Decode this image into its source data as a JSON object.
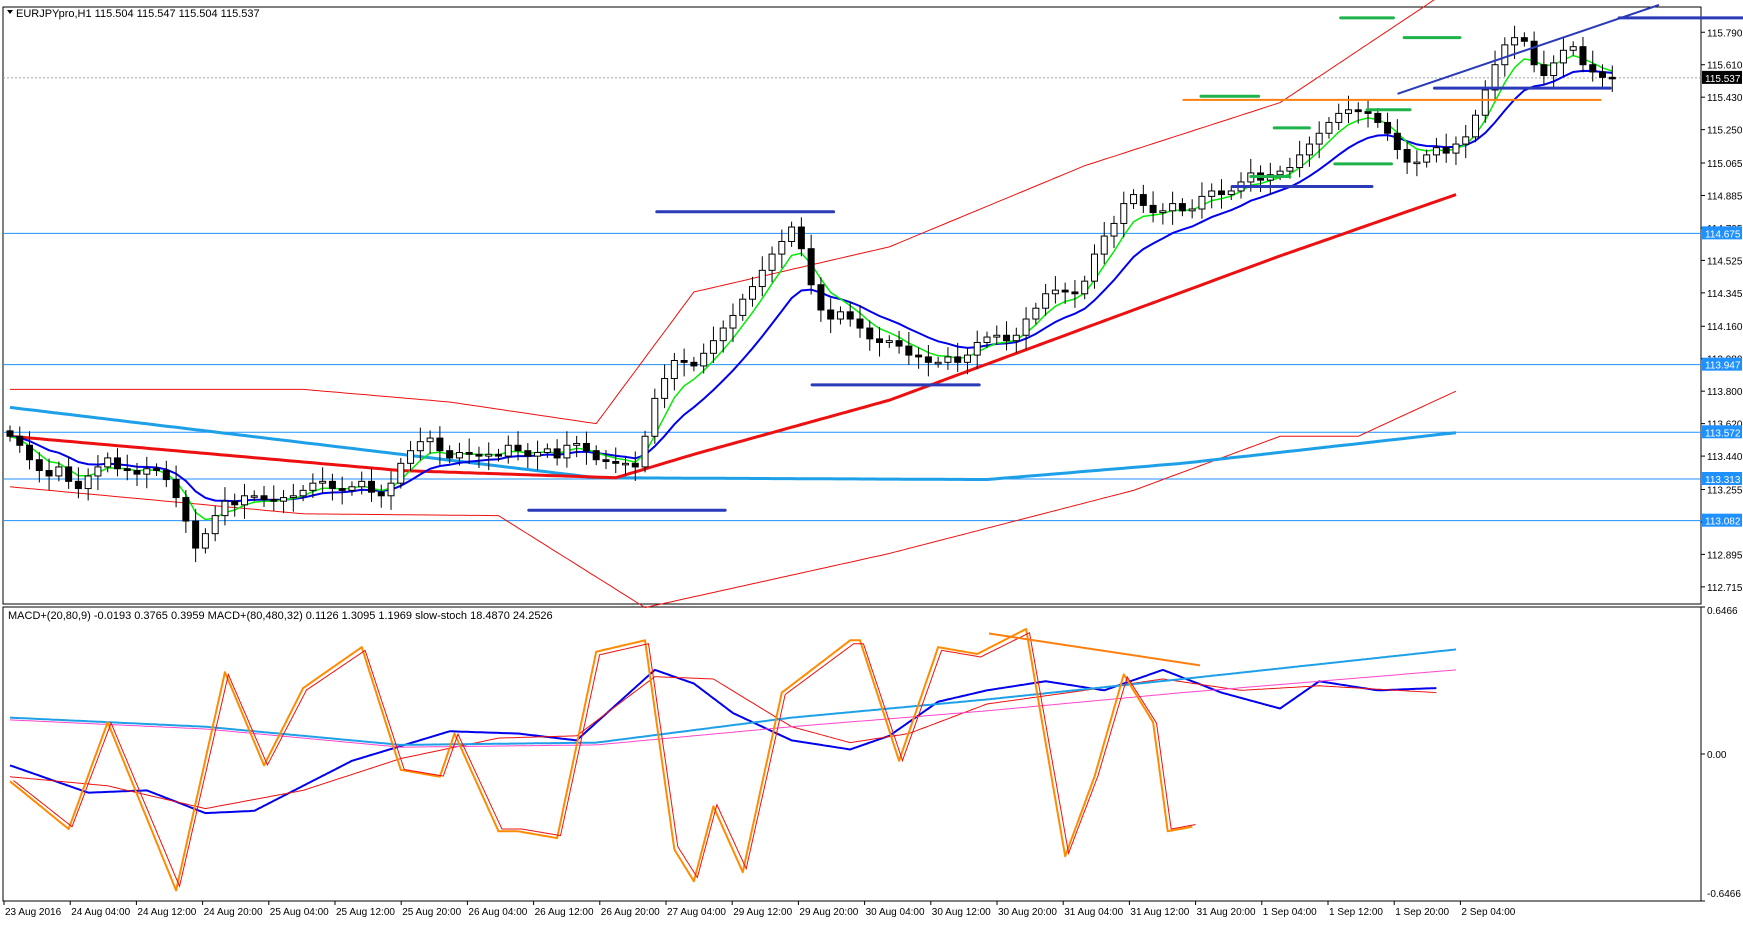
{
  "main_header": "EURJPYpro,H1  115.504 115.547 115.504 115.537",
  "macd_header": "MACD+(20,80,9) -0.0193 0.3765 0.3959  MACD+(80,480,32) 0.1126 1.3095 1.1969  slow-stoch 18.4870 24.2526",
  "colors": {
    "candle_bull": "#ffffff",
    "candle_bear": "#000000",
    "ma_fast": "#00ee00",
    "ma_mid": "#0000ee",
    "ma_slow_red": "#ee1010",
    "ma_long_cyan": "#1ea0e8",
    "band": "#ee1010",
    "hline": "#1e90ff",
    "manual_blue": "#2a3ab8",
    "manual_green": "#1db34a",
    "manual_orange": "#ff7f0e",
    "stoch_main": "#ff8c00",
    "stoch_signal": "#ee1010",
    "macd1": "#0000ee",
    "macd1_signal": "#ee1010",
    "macd2": "#1ea0e8",
    "macd2_signal": "#ff44cc"
  },
  "chart_data": [
    {
      "type": "candlestick",
      "title": "EURJPYpro,H1",
      "ylim": [
        112.62,
        115.93
      ],
      "y_ticks": [
        115.79,
        115.61,
        115.43,
        115.25,
        115.065,
        114.885,
        114.705,
        114.525,
        114.345,
        114.16,
        113.98,
        113.8,
        113.62,
        113.44,
        113.255,
        113.075,
        112.895,
        112.715
      ],
      "x_tick_labels": [
        "23 Aug 2016",
        "24 Aug 04:00",
        "24 Aug 12:00",
        "24 Aug 20:00",
        "25 Aug 04:00",
        "25 Aug 12:00",
        "25 Aug 20:00",
        "26 Aug 04:00",
        "26 Aug 12:00",
        "26 Aug 20:00",
        "27 Aug 04:00",
        "29 Aug 12:00",
        "29 Aug 20:00",
        "30 Aug 04:00",
        "30 Aug 12:00",
        "30 Aug 20:00",
        "31 Aug 04:00",
        "31 Aug 12:00",
        "31 Aug 20:00",
        "1 Sep 04:00",
        "1 Sep 12:00",
        "1 Sep 20:00",
        "2 Sep 04:00"
      ],
      "closes": [
        113.55,
        113.5,
        113.42,
        113.36,
        113.33,
        113.38,
        113.3,
        113.26,
        113.33,
        113.38,
        113.43,
        113.37,
        113.36,
        113.34,
        113.37,
        113.36,
        113.31,
        113.21,
        113.08,
        112.93,
        113.01,
        113.11,
        113.19,
        113.17,
        113.22,
        113.22,
        113.2,
        113.19,
        113.21,
        113.22,
        113.25,
        113.29,
        113.3,
        113.26,
        113.25,
        113.27,
        113.3,
        113.24,
        113.22,
        113.29,
        113.4,
        113.47,
        113.52,
        113.54,
        113.47,
        113.43,
        113.46,
        113.45,
        113.44,
        113.45,
        113.44,
        113.5,
        113.47,
        113.44,
        113.46,
        113.48,
        113.43,
        113.5,
        113.51,
        113.47,
        113.42,
        113.41,
        113.4,
        113.4,
        113.38,
        113.55,
        113.76,
        113.87,
        113.97,
        113.96,
        113.94,
        114.01,
        114.08,
        114.15,
        114.22,
        114.31,
        114.38,
        114.47,
        114.56,
        114.63,
        114.71,
        114.59,
        114.39,
        114.25,
        114.2,
        114.24,
        114.2,
        114.15,
        114.09,
        114.07,
        114.08,
        114.05,
        114,
        113.99,
        113.96,
        113.96,
        113.99,
        113.96,
        114.0,
        114.07,
        114.1,
        114.11,
        114.08,
        114.11,
        114.2,
        114.26,
        114.34,
        114.36,
        114.35,
        114.34,
        114.41,
        114.56,
        114.66,
        114.73,
        114.84,
        114.89,
        114.83,
        114.79,
        114.8,
        114.84,
        114.8,
        114.81,
        114.88,
        114.91,
        114.89,
        114.91,
        114.96,
        115.01,
        114.97,
        115.0,
        115.02,
        115.04,
        115.11,
        115.17,
        115.23,
        115.29,
        115.34,
        115.36,
        115.35,
        115.34,
        115.29,
        115.23,
        115.14,
        115.07,
        115.07,
        115.11,
        115.15,
        115.12,
        115.17,
        115.21,
        115.33,
        115.47,
        115.61,
        115.72,
        115.76,
        115.74,
        115.61,
        115.55,
        115.62,
        115.69,
        115.71,
        115.61,
        115.57,
        115.54,
        115.537
      ],
      "manual_levels": [
        {
          "name": "hline-114.675",
          "y": 114.675,
          "label": "114.675"
        },
        {
          "name": "hline-113.947",
          "y": 113.947,
          "label": "113.947"
        },
        {
          "name": "hline-113.572",
          "y": 113.572,
          "label": "113.572"
        },
        {
          "name": "hline-113.313",
          "y": 113.313,
          "label": "113.313"
        },
        {
          "name": "hline-113.082",
          "y": 113.082,
          "label": "113.082"
        }
      ],
      "current_price": {
        "y": 115.537,
        "label": "115.537"
      },
      "manual_segments": [
        {
          "name": "trend-line",
          "color": "manual_blue",
          "x1": 142.1,
          "y1": 115.45,
          "x2": 168.7,
          "y2": 115.94,
          "w": 2
        },
        {
          "name": "blue-top",
          "color": "manual_blue",
          "x1": 164.7,
          "y1": 115.87,
          "x2": 178.3,
          "y2": 115.87,
          "w": 3
        },
        {
          "name": "blue-1",
          "color": "manual_blue",
          "x1": 145.8,
          "y1": 115.48,
          "x2": 163.8,
          "y2": 115.48,
          "w": 3
        },
        {
          "name": "blue-2",
          "color": "manual_blue",
          "x1": 66.2,
          "y1": 114.795,
          "x2": 84.3,
          "y2": 114.795,
          "w": 3
        },
        {
          "name": "blue-3",
          "color": "manual_blue",
          "x1": 82.1,
          "y1": 113.835,
          "x2": 99.2,
          "y2": 113.835,
          "w": 3
        },
        {
          "name": "blue-4",
          "color": "manual_blue",
          "x1": 53.1,
          "y1": 113.14,
          "x2": 73.2,
          "y2": 113.14,
          "w": 3
        },
        {
          "name": "blue-5",
          "color": "manual_blue",
          "x1": 125.1,
          "y1": 114.935,
          "x2": 139.4,
          "y2": 114.935,
          "w": 3
        },
        {
          "name": "orange-level",
          "color": "manual_orange",
          "x1": 120.1,
          "y1": 115.415,
          "x2": 162.8,
          "y2": 115.415,
          "w": 2
        },
        {
          "name": "green-1",
          "color": "manual_green",
          "x1": 121.9,
          "y1": 115.435,
          "x2": 127.8,
          "y2": 115.435,
          "w": 3
        },
        {
          "name": "green-2",
          "color": "manual_green",
          "x1": 129.4,
          "y1": 115.26,
          "x2": 133.0,
          "y2": 115.26,
          "w": 3
        },
        {
          "name": "green-3",
          "color": "manual_green",
          "x1": 127.0,
          "y1": 114.99,
          "x2": 131.0,
          "y2": 114.99,
          "w": 3
        },
        {
          "name": "green-4",
          "color": "manual_green",
          "x1": 135.6,
          "y1": 115.06,
          "x2": 141.4,
          "y2": 115.06,
          "w": 3
        },
        {
          "name": "green-5",
          "color": "manual_green",
          "x1": 136.2,
          "y1": 115.87,
          "x2": 141.6,
          "y2": 115.87,
          "w": 3
        },
        {
          "name": "green-6",
          "color": "manual_green",
          "x1": 138.9,
          "y1": 115.36,
          "x2": 143.3,
          "y2": 115.36,
          "w": 3
        },
        {
          "name": "green-7",
          "color": "manual_green",
          "x1": 142.7,
          "y1": 115.76,
          "x2": 148.4,
          "y2": 115.76,
          "w": 3
        }
      ],
      "indicators": {
        "ma_long_cyan": [
          [
            0,
            113.71
          ],
          [
            40,
            113.45
          ],
          [
            60,
            113.32
          ],
          [
            100,
            113.31
          ],
          [
            120,
            113.4
          ],
          [
            148,
            113.57
          ]
        ],
        "band_upper": [
          [
            0,
            113.81
          ],
          [
            30,
            113.81
          ],
          [
            45,
            113.74
          ],
          [
            60,
            113.62
          ],
          [
            70,
            114.35
          ],
          [
            90,
            114.6
          ],
          [
            110,
            115.05
          ],
          [
            130,
            115.4
          ],
          [
            148,
            116.05
          ]
        ],
        "band_lower": [
          [
            0,
            113.27
          ],
          [
            30,
            113.12
          ],
          [
            50,
            113.11
          ],
          [
            65,
            112.6
          ],
          [
            90,
            112.9
          ],
          [
            115,
            113.25
          ],
          [
            130,
            113.55
          ],
          [
            138,
            113.55
          ],
          [
            148,
            113.8
          ]
        ],
        "ma_slow_red": [
          [
            0,
            113.55
          ],
          [
            40,
            113.36
          ],
          [
            62,
            113.32
          ],
          [
            70,
            113.45
          ],
          [
            90,
            113.75
          ],
          [
            110,
            114.15
          ],
          [
            130,
            114.55
          ],
          [
            148,
            114.89
          ]
        ]
      }
    },
    {
      "type": "line",
      "title": "MACD+(20,80,9) / MACD+(80,480,32) / slow-stoch",
      "ylim": [
        -0.6466,
        0.6466
      ],
      "y_tick_labels": [
        "0.6466",
        "0.00",
        "-0.6466"
      ],
      "series": [
        {
          "name": "MACD+(20,80,9)",
          "color": "macd1",
          "points": [
            [
              0,
              -0.05
            ],
            [
              8,
              -0.17
            ],
            [
              14,
              -0.16
            ],
            [
              20,
              -0.26
            ],
            [
              25,
              -0.25
            ],
            [
              35,
              -0.03
            ],
            [
              45,
              0.1
            ],
            [
              52,
              0.09
            ],
            [
              58,
              0.06
            ],
            [
              66,
              0.37
            ],
            [
              70,
              0.31
            ],
            [
              74,
              0.18
            ],
            [
              80,
              0.06
            ],
            [
              86,
              0.02
            ],
            [
              90,
              0.08
            ],
            [
              95,
              0.23
            ],
            [
              100,
              0.28
            ],
            [
              106,
              0.32
            ],
            [
              112,
              0.28
            ],
            [
              118,
              0.37
            ],
            [
              124,
              0.27
            ],
            [
              130,
              0.2
            ],
            [
              134,
              0.32
            ],
            [
              140,
              0.28
            ],
            [
              146,
              0.29
            ]
          ]
        },
        {
          "name": "signal",
          "color": "macd1_signal",
          "points": [
            [
              0,
              -0.1
            ],
            [
              10,
              -0.14
            ],
            [
              20,
              -0.24
            ],
            [
              30,
              -0.16
            ],
            [
              40,
              -0.02
            ],
            [
              50,
              0.07
            ],
            [
              58,
              0.08
            ],
            [
              66,
              0.34
            ],
            [
              72,
              0.33
            ],
            [
              80,
              0.12
            ],
            [
              86,
              0.05
            ],
            [
              92,
              0.09
            ],
            [
              100,
              0.22
            ],
            [
              110,
              0.28
            ],
            [
              118,
              0.33
            ],
            [
              126,
              0.28
            ],
            [
              134,
              0.3
            ],
            [
              146,
              0.27
            ]
          ]
        },
        {
          "name": "MACD+(80,480,32)",
          "color": "macd2",
          "points": [
            [
              0,
              0.16
            ],
            [
              20,
              0.12
            ],
            [
              40,
              0.04
            ],
            [
              60,
              0.05
            ],
            [
              80,
              0.16
            ],
            [
              100,
              0.24
            ],
            [
              120,
              0.33
            ],
            [
              148,
              0.46
            ]
          ]
        },
        {
          "name": "MACD+(80,480,32) signal",
          "color": "macd2_signal",
          "points": [
            [
              0,
              0.15
            ],
            [
              20,
              0.11
            ],
            [
              40,
              0.03
            ],
            [
              60,
              0.04
            ],
            [
              80,
              0.12
            ],
            [
              100,
              0.19
            ],
            [
              120,
              0.27
            ],
            [
              148,
              0.37
            ]
          ]
        },
        {
          "name": "slow-stoch",
          "color": "stoch_main",
          "points": [
            [
              0,
              -0.12
            ],
            [
              6,
              -0.33
            ],
            [
              10,
              0.14
            ],
            [
              17,
              -0.6
            ],
            [
              22,
              0.36
            ],
            [
              26,
              -0.05
            ],
            [
              30,
              0.29
            ],
            [
              36,
              0.47
            ],
            [
              40,
              -0.07
            ],
            [
              44,
              -0.1
            ],
            [
              45.5,
              0.09
            ],
            [
              50,
              -0.34
            ],
            [
              52,
              -0.34
            ],
            [
              56,
              -0.37
            ],
            [
              60,
              0.45
            ],
            [
              65,
              0.5
            ],
            [
              68,
              -0.42
            ],
            [
              70,
              -0.56
            ],
            [
              72,
              -0.23
            ],
            [
              75,
              -0.52
            ],
            [
              79,
              0.27
            ],
            [
              86,
              0.5
            ],
            [
              87,
              0.5
            ],
            [
              91,
              -0.03
            ],
            [
              95,
              0.47
            ],
            [
              99,
              0.44
            ],
            [
              104,
              0.55
            ],
            [
              108,
              -0.45
            ],
            [
              111,
              -0.1
            ],
            [
              114,
              0.35
            ],
            [
              117,
              0.14
            ],
            [
              118.5,
              -0.34
            ],
            [
              121,
              -0.32
            ]
          ]
        }
      ],
      "manual_segments": [
        {
          "name": "divergence-line",
          "color": "manual_orange",
          "x1": 100.2,
          "y1": 0.53,
          "x2": 121.8,
          "y2": 0.39,
          "w": 2
        }
      ]
    }
  ]
}
